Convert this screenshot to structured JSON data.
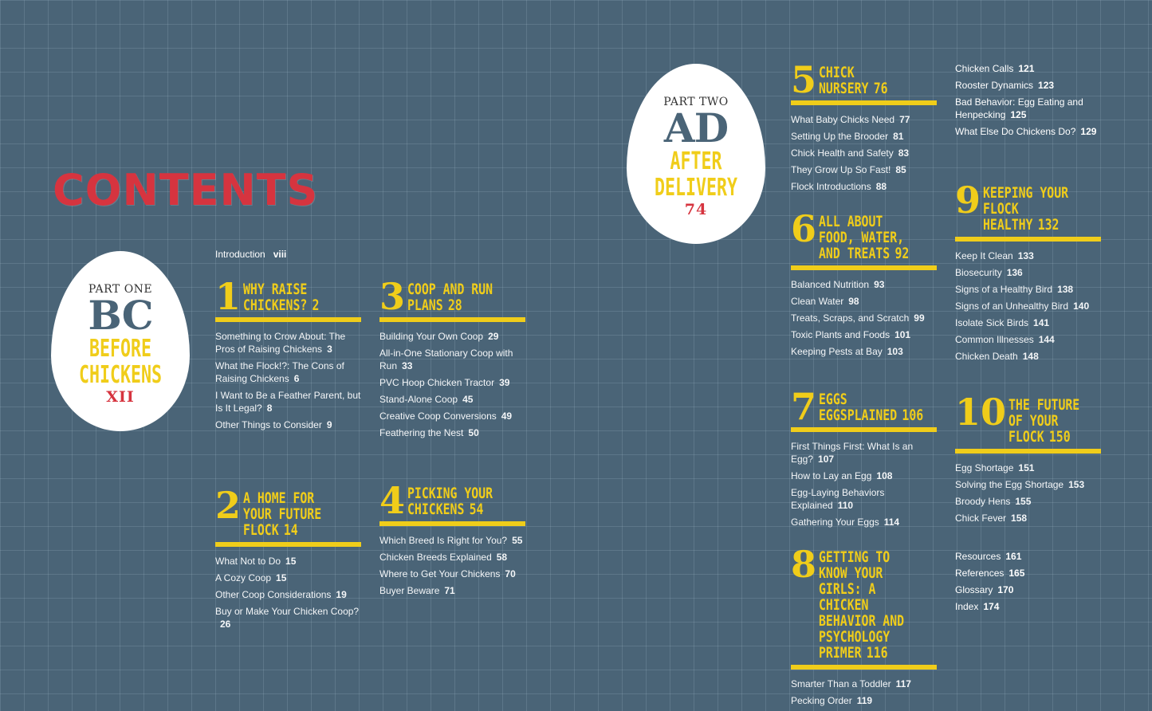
{
  "title": "CONTENTS",
  "introduction": {
    "label": "Introduction",
    "page": "viii"
  },
  "parts": [
    {
      "part": "PART ONE",
      "letters": "BC",
      "line1": "BEFORE",
      "line2": "CHICKENS",
      "page": "XII"
    },
    {
      "part": "PART TWO",
      "letters": "AD",
      "line1": "AFTER",
      "line2": "DELIVERY",
      "page": "74"
    }
  ],
  "chapters": [
    {
      "num": "1",
      "title": "WHY RAISE CHICKENS?",
      "page": "2",
      "items": [
        {
          "t": "Something to Crow About: The Pros of Raising Chickens",
          "p": "3"
        },
        {
          "t": "What the Flock!?: The Cons of Raising Chickens",
          "p": "6"
        },
        {
          "t": "I Want to Be a Feather Parent, but Is It Legal?",
          "p": "8"
        },
        {
          "t": "Other Things to Consider",
          "p": "9"
        }
      ]
    },
    {
      "num": "2",
      "title": "A HOME FOR YOUR FUTURE FLOCK",
      "page": "14",
      "items": [
        {
          "t": "What Not to Do",
          "p": "15"
        },
        {
          "t": "A Cozy Coop",
          "p": "15"
        },
        {
          "t": "Other Coop Considerations",
          "p": "19"
        },
        {
          "t": "Buy or Make Your Chicken Coop?",
          "p": "26"
        }
      ]
    },
    {
      "num": "3",
      "title": "COOP AND RUN PLANS",
      "page": "28",
      "items": [
        {
          "t": "Building Your Own Coop",
          "p": "29"
        },
        {
          "t": "All-in-One Stationary Coop with Run",
          "p": "33"
        },
        {
          "t": "PVC Hoop Chicken Tractor",
          "p": "39"
        },
        {
          "t": "Stand-Alone Coop",
          "p": "45"
        },
        {
          "t": "Creative Coop Conversions",
          "p": "49"
        },
        {
          "t": "Feathering the Nest",
          "p": "50"
        }
      ]
    },
    {
      "num": "4",
      "title": "PICKING YOUR CHICKENS",
      "page": "54",
      "items": [
        {
          "t": "Which Breed Is Right for You?",
          "p": "55"
        },
        {
          "t": "Chicken Breeds Explained",
          "p": "58"
        },
        {
          "t": "Where to Get Your Chickens",
          "p": "70"
        },
        {
          "t": "Buyer Beware",
          "p": "71"
        }
      ]
    },
    {
      "num": "5",
      "title": "CHICK NURSERY",
      "page": "76",
      "items": [
        {
          "t": "What Baby Chicks Need",
          "p": "77"
        },
        {
          "t": "Setting Up the Brooder",
          "p": "81"
        },
        {
          "t": "Chick Health and Safety",
          "p": "83"
        },
        {
          "t": "They Grow Up So Fast!",
          "p": "85"
        },
        {
          "t": "Flock Introductions",
          "p": "88"
        }
      ]
    },
    {
      "num": "6",
      "title": "ALL ABOUT FOOD, WATER, AND TREATS",
      "page": "92",
      "items": [
        {
          "t": "Balanced Nutrition",
          "p": "93"
        },
        {
          "t": "Clean Water",
          "p": "98"
        },
        {
          "t": "Treats, Scraps, and Scratch",
          "p": "99"
        },
        {
          "t": "Toxic Plants and Foods",
          "p": "101"
        },
        {
          "t": "Keeping Pests at Bay",
          "p": "103"
        }
      ]
    },
    {
      "num": "7",
      "title": "EGGS EGGSPLAINED",
      "page": "106",
      "items": [
        {
          "t": "First Things First: What Is an Egg?",
          "p": "107"
        },
        {
          "t": "How to Lay an Egg",
          "p": "108"
        },
        {
          "t": "Egg-Laying Behaviors Explained",
          "p": "110"
        },
        {
          "t": "Gathering Your Eggs",
          "p": "114"
        }
      ]
    },
    {
      "num": "8",
      "title": "GETTING TO KNOW YOUR GIRLS: A CHICKEN BEHAVIOR AND PSYCHOLOGY PRIMER",
      "page": "116",
      "items": [
        {
          "t": "Smarter Than a Toddler",
          "p": "117"
        },
        {
          "t": "Pecking Order",
          "p": "119"
        }
      ]
    },
    {
      "num": "9",
      "title": "KEEPING YOUR FLOCK HEALTHY",
      "page": "132",
      "items": [
        {
          "t": "Keep It Clean",
          "p": "133"
        },
        {
          "t": "Biosecurity",
          "p": "136"
        },
        {
          "t": "Signs of a Healthy Bird",
          "p": "138"
        },
        {
          "t": "Signs of an Unhealthy Bird",
          "p": "140"
        },
        {
          "t": "Isolate Sick Birds",
          "p": "141"
        },
        {
          "t": "Common Illnesses",
          "p": "144"
        },
        {
          "t": "Chicken Death",
          "p": "148"
        }
      ]
    },
    {
      "num": "10",
      "title": "THE FUTURE OF YOUR FLOCK",
      "page": "150",
      "items": [
        {
          "t": "Egg Shortage",
          "p": "151"
        },
        {
          "t": "Solving the Egg Shortage",
          "p": "153"
        },
        {
          "t": "Broody Hens",
          "p": "155"
        },
        {
          "t": "Chick Fever",
          "p": "158"
        }
      ]
    }
  ],
  "chapter8_continued": [
    {
      "t": "Chicken Calls",
      "p": "121"
    },
    {
      "t": "Rooster Dynamics",
      "p": "123"
    },
    {
      "t": "Bad Behavior: Egg Eating and Henpecking",
      "p": "125"
    },
    {
      "t": "What Else Do Chickens Do?",
      "p": "129"
    }
  ],
  "back_matter": [
    {
      "t": "Resources",
      "p": "161"
    },
    {
      "t": "References",
      "p": "165"
    },
    {
      "t": "Glossary",
      "p": "170"
    },
    {
      "t": "Index",
      "p": "174"
    }
  ],
  "colors": {
    "background": "#4a6477",
    "accent": "#f0cd1a",
    "title": "#d6343f"
  }
}
